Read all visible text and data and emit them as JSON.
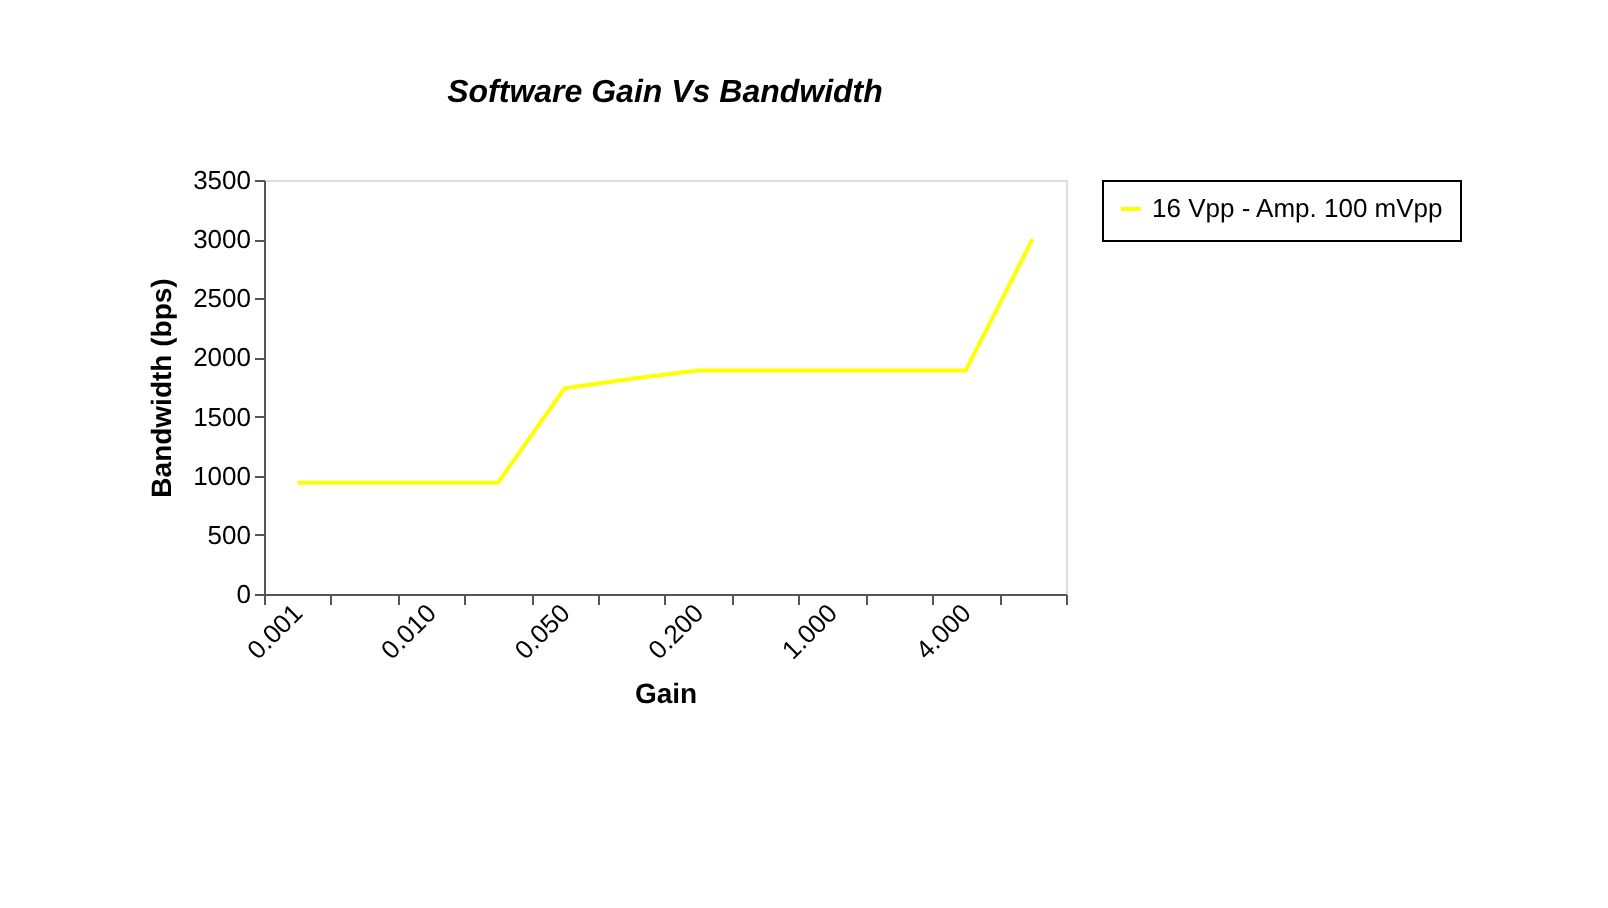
{
  "chart_data": {
    "type": "line",
    "title": "Software Gain  Vs  Bandwidth",
    "xlabel": "Gain",
    "ylabel": "Bandwidth (bps)",
    "categories": [
      "0.001",
      null,
      "0.010",
      null,
      "0.050",
      null,
      "0.200",
      null,
      "1.000",
      null,
      "4.000",
      null
    ],
    "series": [
      {
        "name": "16 Vpp - Amp. 100 mVpp",
        "color": "#ffff00",
        "values": [
          940,
          940,
          940,
          940,
          1740,
          1820,
          1890,
          1890,
          1890,
          1890,
          1890,
          3000
        ]
      }
    ],
    "ylim": [
      0,
      3500
    ],
    "yticks": [
      0,
      500,
      1000,
      1500,
      2000,
      2500,
      3000,
      3500
    ],
    "grid": false,
    "legend": "right",
    "marker": "none",
    "line_style": "solid"
  }
}
